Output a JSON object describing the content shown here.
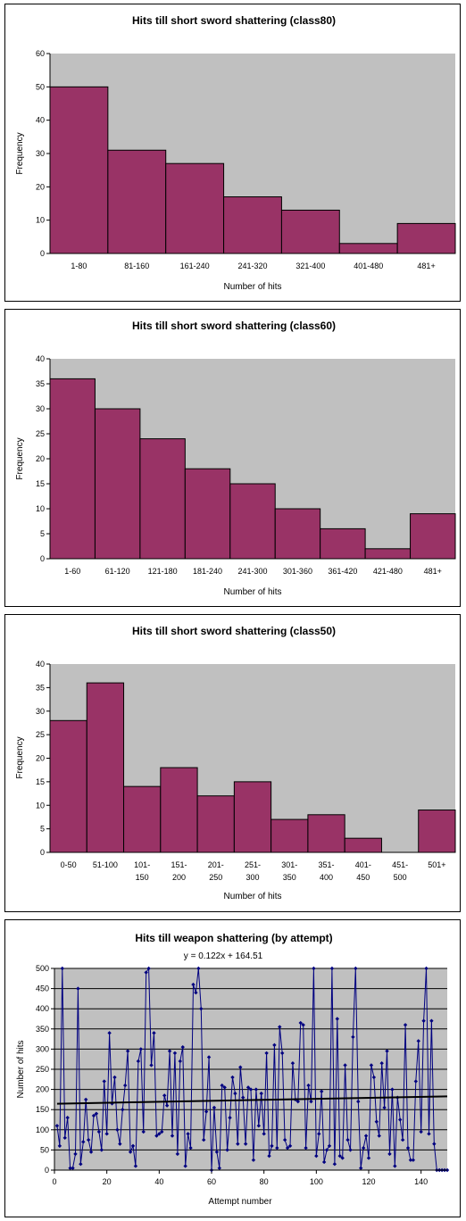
{
  "chart_data": [
    {
      "type": "bar",
      "title": "Hits till short sword shattering (class80)",
      "xlabel": "Number of hits",
      "ylabel": "Frequency",
      "categories": [
        "1-80",
        "81-160",
        "161-240",
        "241-320",
        "321-400",
        "401-480",
        "481+"
      ],
      "values": [
        50,
        31,
        27,
        17,
        13,
        3,
        9
      ],
      "ylim": [
        0,
        60
      ],
      "yticks": [
        0,
        10,
        20,
        30,
        40,
        50,
        60
      ],
      "grid": false,
      "colors": {
        "bar": "#993366",
        "plot_bg": "#c0c0c0"
      }
    },
    {
      "type": "bar",
      "title": "Hits till short sword shattering (class60)",
      "xlabel": "Number of hits",
      "ylabel": "Frequency",
      "categories": [
        "1-60",
        "61-120",
        "121-180",
        "181-240",
        "241-300",
        "301-360",
        "361-420",
        "421-480",
        "481+"
      ],
      "values": [
        36,
        30,
        24,
        18,
        15,
        10,
        6,
        2,
        9
      ],
      "ylim": [
        0,
        40
      ],
      "yticks": [
        0,
        5,
        10,
        15,
        20,
        25,
        30,
        35,
        40
      ],
      "grid": false,
      "colors": {
        "bar": "#993366",
        "plot_bg": "#c0c0c0"
      }
    },
    {
      "type": "bar",
      "title": "Hits till short sword shattering (class50)",
      "xlabel": "Number of hits",
      "ylabel": "Frequency",
      "categories": [
        [
          "0-50"
        ],
        [
          "51-100"
        ],
        [
          "101-",
          "150"
        ],
        [
          "151-",
          "200"
        ],
        [
          "201-",
          "250"
        ],
        [
          "251-",
          "300"
        ],
        [
          "301-",
          "350"
        ],
        [
          "351-",
          "400"
        ],
        [
          "401-",
          "450"
        ],
        [
          "451-",
          "500"
        ],
        [
          "501+"
        ]
      ],
      "values": [
        28,
        36,
        14,
        18,
        12,
        15,
        7,
        8,
        3,
        0,
        9
      ],
      "ylim": [
        0,
        40
      ],
      "yticks": [
        0,
        5,
        10,
        15,
        20,
        25,
        30,
        35,
        40
      ],
      "grid": false,
      "colors": {
        "bar": "#993366",
        "plot_bg": "#c0c0c0"
      }
    },
    {
      "type": "line",
      "title": "Hits till weapon shattering (by attempt)",
      "annotation": "y = 0.122x + 164.51",
      "xlabel": "Attempt number",
      "ylabel": "Number of hits",
      "xlim": [
        0,
        150
      ],
      "ylim": [
        0,
        500
      ],
      "xticks": [
        0,
        20,
        40,
        60,
        80,
        100,
        120,
        140
      ],
      "yticks": [
        0,
        50,
        100,
        150,
        200,
        250,
        300,
        350,
        400,
        450,
        500
      ],
      "grid": true,
      "trendline": {
        "slope": 0.122,
        "intercept": 164.51
      },
      "colors": {
        "series": "#000080",
        "trend": "#000000",
        "plot_bg": "#c0c0c0"
      },
      "series": [
        {
          "x": [
            1,
            2,
            3,
            4,
            5,
            6,
            7,
            8,
            9,
            10,
            11,
            12,
            13,
            14,
            15,
            16,
            17,
            18,
            19,
            20,
            21,
            22,
            23,
            24,
            25,
            26,
            27,
            28,
            29,
            30,
            31,
            32,
            33,
            34,
            35,
            36,
            37,
            38,
            39,
            40,
            41,
            42,
            43,
            44,
            45,
            46,
            47,
            48,
            49,
            50,
            51,
            52,
            53,
            54,
            55,
            56,
            57,
            58,
            59,
            60,
            61,
            62,
            63,
            64,
            65,
            66,
            67,
            68,
            69,
            70,
            71,
            72,
            73,
            74,
            75,
            76,
            77,
            78,
            79,
            80,
            81,
            82,
            83,
            84,
            85,
            86,
            87,
            88,
            89,
            90,
            91,
            92,
            93,
            94,
            95,
            96,
            97,
            98,
            99,
            100,
            101,
            102,
            103,
            104,
            105,
            106,
            107,
            108,
            109,
            110,
            111,
            112,
            113,
            114,
            115,
            116,
            117,
            118,
            119,
            120,
            121,
            122,
            123,
            124,
            125,
            126,
            127,
            128,
            129,
            130,
            131,
            132,
            133,
            134,
            135,
            136,
            137,
            138,
            139,
            140,
            141,
            142,
            143,
            144,
            145,
            146,
            147,
            148,
            149,
            150
          ],
          "values": [
            110,
            60,
            500,
            80,
            130,
            5,
            5,
            40,
            450,
            15,
            70,
            175,
            75,
            45,
            135,
            140,
            95,
            50,
            220,
            90,
            340,
            165,
            230,
            100,
            65,
            150,
            210,
            295,
            45,
            60,
            10,
            270,
            300,
            95,
            490,
            500,
            260,
            340,
            85,
            90,
            95,
            185,
            160,
            295,
            85,
            290,
            40,
            270,
            305,
            10,
            90,
            55,
            460,
            440,
            500,
            400,
            75,
            145,
            280,
            0,
            155,
            45,
            5,
            210,
            205,
            50,
            130,
            230,
            190,
            65,
            255,
            180,
            65,
            205,
            200,
            25,
            200,
            110,
            190,
            90,
            290,
            35,
            60,
            310,
            55,
            355,
            290,
            75,
            55,
            60,
            265,
            175,
            170,
            365,
            360,
            55,
            210,
            170,
            500,
            35,
            90,
            195,
            20,
            50,
            60,
            500,
            15,
            375,
            35,
            30,
            260,
            75,
            50,
            330,
            500,
            170,
            5,
            55,
            85,
            30,
            260,
            230,
            120,
            85,
            265,
            155,
            295,
            40,
            200,
            10,
            180,
            125,
            75,
            360,
            55,
            25,
            25,
            220,
            320,
            95,
            370,
            500,
            90,
            370,
            65,
            0,
            0,
            0,
            0,
            0
          ]
        }
      ]
    }
  ]
}
